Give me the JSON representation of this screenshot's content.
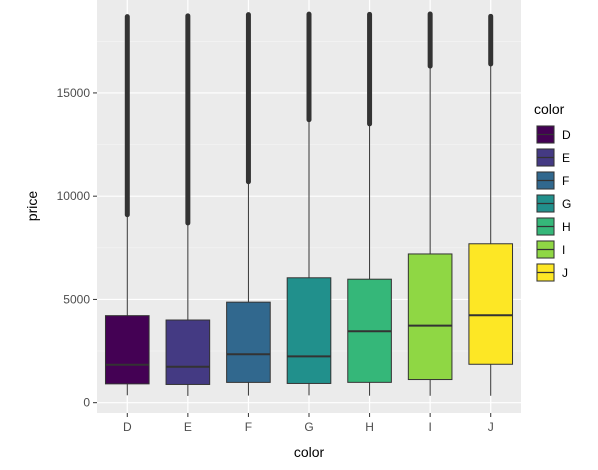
{
  "chart_data": {
    "type": "boxplot",
    "xlabel": "color",
    "ylabel": "price",
    "ylim": [
      -500,
      19500
    ],
    "yticks": [
      0,
      5000,
      10000,
      15000
    ],
    "grid": true,
    "legend": {
      "title": "color",
      "position": "right"
    },
    "categories": [
      "D",
      "E",
      "F",
      "G",
      "H",
      "I",
      "J"
    ],
    "colors": [
      "#440154",
      "#443A83",
      "#31688E",
      "#21908C",
      "#35B779",
      "#8FD744",
      "#FDE725"
    ],
    "boxes": [
      {
        "category": "D",
        "whisker_low": 357,
        "q1": 911,
        "median": 1838,
        "q3": 4214,
        "whisker_high": 9100,
        "outlier_min": 9100,
        "outlier_max": 18693
      },
      {
        "category": "E",
        "whisker_low": 326,
        "q1": 882,
        "median": 1739,
        "q3": 4003,
        "whisker_high": 8700,
        "outlier_min": 8700,
        "outlier_max": 18731
      },
      {
        "category": "F",
        "whisker_low": 342,
        "q1": 982,
        "median": 2344,
        "q3": 4868,
        "whisker_high": 10700,
        "outlier_min": 10700,
        "outlier_max": 18791
      },
      {
        "category": "G",
        "whisker_low": 354,
        "q1": 931,
        "median": 2242,
        "q3": 6048,
        "whisker_high": 13700,
        "outlier_min": 13700,
        "outlier_max": 18818
      },
      {
        "category": "H",
        "whisker_low": 337,
        "q1": 984,
        "median": 3460,
        "q3": 5980,
        "whisker_high": 13500,
        "outlier_min": 13500,
        "outlier_max": 18803
      },
      {
        "category": "I",
        "whisker_low": 334,
        "q1": 1120,
        "median": 3730,
        "q3": 7202,
        "whisker_high": 16300,
        "outlier_min": 16300,
        "outlier_max": 18823
      },
      {
        "category": "J",
        "whisker_low": 335,
        "q1": 1860,
        "median": 4234,
        "q3": 7695,
        "whisker_high": 16400,
        "outlier_min": 16400,
        "outlier_max": 18710
      }
    ]
  }
}
